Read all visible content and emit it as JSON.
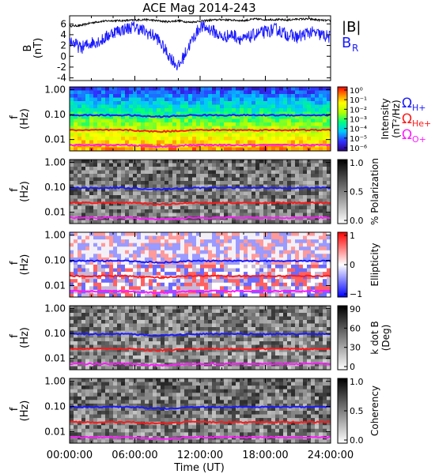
{
  "chart_data": {
    "title": "ACE Mag 2014-243",
    "xlabel": "Time (UT)",
    "x_ticks": [
      "00:00:00",
      "06:00:00",
      "12:00:00",
      "18:00:00",
      "24:00:00"
    ],
    "xlim_hours": [
      0,
      24
    ],
    "panels": [
      {
        "type": "line",
        "ylabel_top": "B",
        "ylabel_unit": "(nT)",
        "ylim": [
          -4.5,
          7.5
        ],
        "y_ticks": [
          "6",
          "4",
          "2",
          "0",
          "-2",
          "-4"
        ],
        "legend": [
          {
            "label": "|B|",
            "color": "#000000"
          },
          {
            "label": "B",
            "sub": "R",
            "color": "#1a1aff"
          }
        ],
        "series": [
          {
            "name": "|B|",
            "color": "#000000",
            "t": [
              0,
              1,
              2,
              3,
              4,
              5,
              6,
              7,
              8,
              9,
              10,
              11,
              12,
              13,
              14,
              15,
              16,
              17,
              18,
              19,
              20,
              21,
              22,
              23,
              24
            ],
            "y": [
              5.6,
              5.7,
              6.2,
              6.5,
              6.6,
              6.6,
              6.7,
              6.8,
              6.6,
              6.4,
              6.6,
              6.3,
              6.5,
              6.7,
              6.8,
              6.7,
              6.6,
              6.9,
              6.8,
              6.8,
              6.7,
              6.9,
              6.9,
              6.7,
              6.6
            ]
          },
          {
            "name": "B",
            "color": "#1a1aff",
            "t": [
              0,
              1,
              2,
              3,
              4,
              5,
              6,
              7,
              8,
              9,
              10,
              11,
              12,
              13,
              14,
              15,
              16,
              17,
              18,
              19,
              20,
              21,
              22,
              23,
              24
            ],
            "y": [
              3.0,
              1.5,
              2.5,
              3.0,
              4.5,
              5.0,
              5.5,
              4.5,
              3.5,
              0.5,
              -2.0,
              2.0,
              5.5,
              5.0,
              3.5,
              4.0,
              3.0,
              4.0,
              4.5,
              5.0,
              4.0,
              3.5,
              4.5,
              4.0,
              3.5
            ]
          }
        ]
      },
      {
        "type": "heatmap",
        "ylabel_top": "f",
        "ylabel_unit": "(Hz)",
        "y_ticks": [
          "1.00",
          "0.10",
          "0.01"
        ],
        "colorbar": {
          "label": "Intensity",
          "unit": "(nT²/Hz)",
          "ticks": [
            "10⁰",
            "10⁻¹",
            "10⁻²",
            "10⁻³",
            "10⁻⁴",
            "10⁻⁵",
            "10⁻⁶"
          ]
        },
        "legend": [
          {
            "label": "Ω",
            "sub": "H+",
            "color": "#1a1aff"
          },
          {
            "label": "Ω",
            "sub": "He+",
            "color": "#ff1a1a"
          },
          {
            "label": "Ω",
            "sub": "O+",
            "color": "#ff1aff"
          }
        ]
      },
      {
        "type": "heatmap",
        "ylabel_top": "f",
        "ylabel_unit": "(Hz)",
        "y_ticks": [
          "1.00",
          "0.10",
          "0.01"
        ],
        "colorbar": {
          "label": "% Polarization",
          "ticks": [
            "1.0",
            "0.5",
            "0.0"
          ]
        }
      },
      {
        "type": "heatmap",
        "ylabel_top": "f",
        "ylabel_unit": "(Hz)",
        "y_ticks": [
          "1.00",
          "0.10",
          "0.01"
        ],
        "colorbar": {
          "label": "Ellipticity",
          "ticks": [
            "1",
            "0",
            "−1"
          ]
        }
      },
      {
        "type": "heatmap",
        "ylabel_top": "f",
        "ylabel_unit": "(Hz)",
        "y_ticks": [
          "1.00",
          "0.10",
          "0.01"
        ],
        "colorbar": {
          "label": "k dot B",
          "unit": "(Deg)",
          "ticks": [
            "90",
            "60",
            "30",
            "0"
          ]
        }
      },
      {
        "type": "heatmap",
        "ylabel_top": "f",
        "ylabel_unit": "(Hz)",
        "y_ticks": [
          "1.00",
          "0.10",
          "0.01"
        ],
        "colorbar": {
          "label": "Coherency",
          "ticks": [
            "1.0",
            "0.5",
            "0.0"
          ]
        }
      }
    ],
    "gyrofrequency_lines_hz": {
      "H+": 0.095,
      "He+": 0.024,
      "O+": 0.006
    }
  }
}
